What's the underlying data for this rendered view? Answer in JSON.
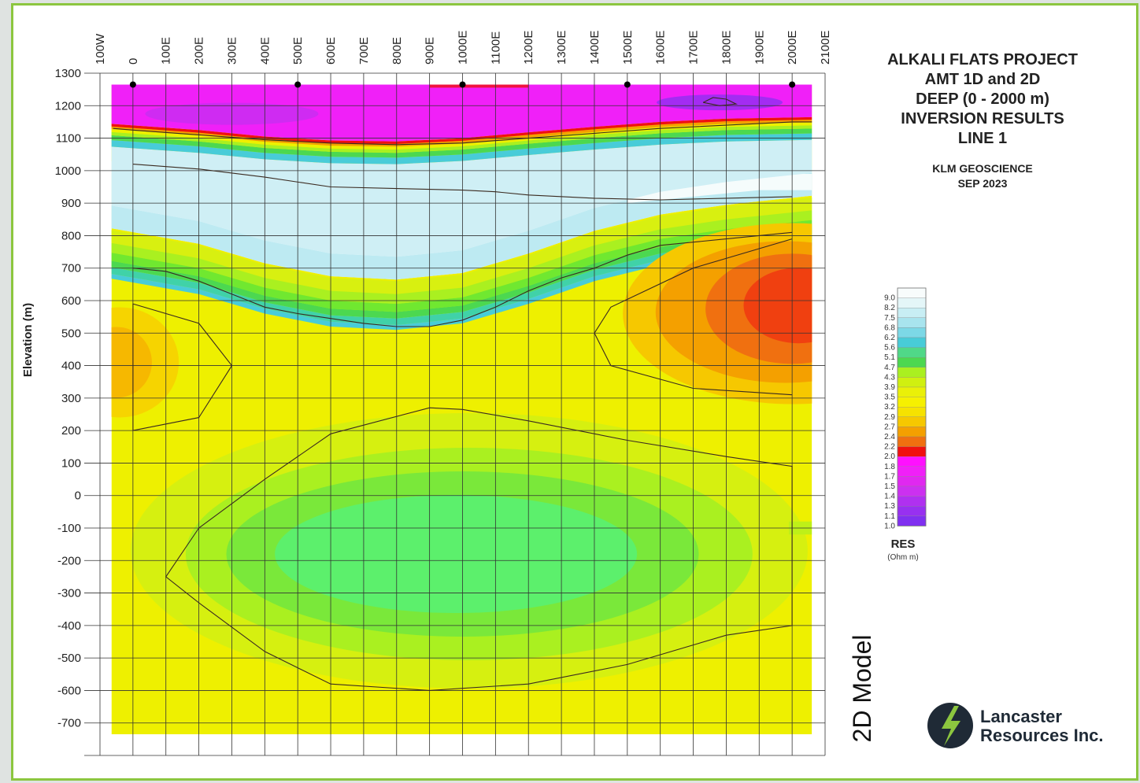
{
  "colors": {
    "frame": "#8cc63f",
    "brand_dark": "#1f2a36",
    "brand_green": "#8cc63f"
  },
  "chart_data": {
    "type": "heatmap",
    "title_lines": [
      "ALKALI FLATS PROJECT",
      "AMT 1D and 2D",
      "DEEP (0 - 2000 m)",
      "INVERSION RESULTS",
      "LINE 1"
    ],
    "credit_lines": [
      "KLM GEOSCIENCE",
      "SEP 2023"
    ],
    "ylabel": "Elevation (m)",
    "model_label": "2D Model",
    "x_ticks": [
      "100W",
      "0",
      "100E",
      "200E",
      "300E",
      "400E",
      "500E",
      "600E",
      "700E",
      "800E",
      "900E",
      "1000E",
      "1100E",
      "1200E",
      "1300E",
      "1400E",
      "1500E",
      "1600E",
      "1700E",
      "1800E",
      "1900E",
      "2000E",
      "2100E"
    ],
    "x_range": [
      -100,
      2100
    ],
    "y_ticks": [
      1300,
      1200,
      1100,
      1000,
      900,
      800,
      700,
      600,
      500,
      400,
      300,
      200,
      100,
      0,
      -100,
      -200,
      -300,
      -400,
      -500,
      -600,
      -700
    ],
    "y_range": [
      -800,
      1300
    ],
    "grid": true,
    "stations": [
      0,
      500,
      1000,
      1500,
      2000
    ],
    "station_elevation": 1265,
    "color_scale": {
      "title": "RES",
      "unit": "(Ohm m)",
      "labels": [
        "9.0",
        "8.2",
        "7.5",
        "6.8",
        "6.2",
        "5.6",
        "5.1",
        "4.7",
        "4.3",
        "3.9",
        "3.5",
        "3.2",
        "2.9",
        "2.7",
        "2.4",
        "2.2",
        "2.0",
        "1.8",
        "1.7",
        "1.5",
        "1.4",
        "1.3",
        "1.1",
        "1.0"
      ],
      "colors": [
        "#f8fcfc",
        "#e4f6f8",
        "#c8eef4",
        "#a8e4ee",
        "#7cd8e6",
        "#48ccd8",
        "#50d888",
        "#4cd850",
        "#aaf020",
        "#d0f010",
        "#eaf008",
        "#f6f000",
        "#f6e200",
        "#f6c800",
        "#f4a000",
        "#f07010",
        "#f01010",
        "#ff10ff",
        "#f020f8",
        "#e028f0",
        "#cc30f0",
        "#b030f0",
        "#9830f0",
        "#8030f0"
      ]
    },
    "series": [
      {
        "name": "1.2 Ohm m contour (approx.)",
        "x": [
          1730,
          1760,
          1800,
          1830,
          1780,
          1730
        ],
        "y": [
          1210,
          1225,
          1220,
          1205,
          1200,
          1210
        ]
      },
      {
        "name": "2.0 Ohm m contour (approx.)",
        "x": [
          -60,
          0,
          200,
          400,
          600,
          800,
          1000,
          1200,
          1400,
          1600,
          1800,
          2000,
          2060
        ],
        "y": [
          1130,
          1125,
          1110,
          1095,
          1085,
          1080,
          1085,
          1100,
          1115,
          1130,
          1140,
          1150,
          1150
        ]
      },
      {
        "name": "9.0 Ohm m contour (approx.)",
        "x": [
          0,
          200,
          400,
          600,
          800,
          1000,
          1100,
          1200,
          1400,
          1600,
          1800,
          2000
        ],
        "y": [
          1020,
          1005,
          980,
          950,
          945,
          940,
          935,
          925,
          915,
          910,
          915,
          920
        ]
      },
      {
        "name": "3.9 Ohm m contour (approx.)",
        "x": [
          0,
          100,
          200,
          300,
          400,
          500,
          600,
          700,
          800,
          900,
          1000,
          1100,
          1200,
          1300,
          1400,
          1500,
          1600,
          1700,
          1800,
          1900,
          2000
        ],
        "y": [
          700,
          690,
          660,
          620,
          580,
          560,
          545,
          530,
          520,
          520,
          540,
          580,
          630,
          670,
          700,
          740,
          770,
          780,
          790,
          800,
          810
        ]
      },
      {
        "name": "3.2 Ohm m contour (approx.)",
        "x": [
          0,
          0,
          200,
          300,
          200,
          0
        ],
        "y": [
          590,
          200,
          240,
          400,
          530,
          590
        ]
      },
      {
        "name": "2.9 Ohm m contour (approx.)",
        "x": [
          2000,
          1700,
          1450,
          1400,
          1450,
          1700,
          2000
        ],
        "y": [
          790,
          700,
          580,
          500,
          400,
          330,
          310
        ]
      },
      {
        "name": "4.3 Ohm m contour (approx.)",
        "x": [
          200,
          400,
          600,
          900,
          1000,
          1200,
          1500,
          1800,
          2000,
          2000,
          1800,
          1500,
          1200,
          900,
          600,
          400,
          200,
          100,
          200
        ],
        "y": [
          -100,
          50,
          190,
          270,
          265,
          230,
          170,
          120,
          90,
          -400,
          -430,
          -520,
          -580,
          -600,
          -580,
          -480,
          -330,
          -250,
          -100
        ]
      }
    ]
  },
  "logo": {
    "line1": "Lancaster",
    "line2": "Resources Inc."
  }
}
